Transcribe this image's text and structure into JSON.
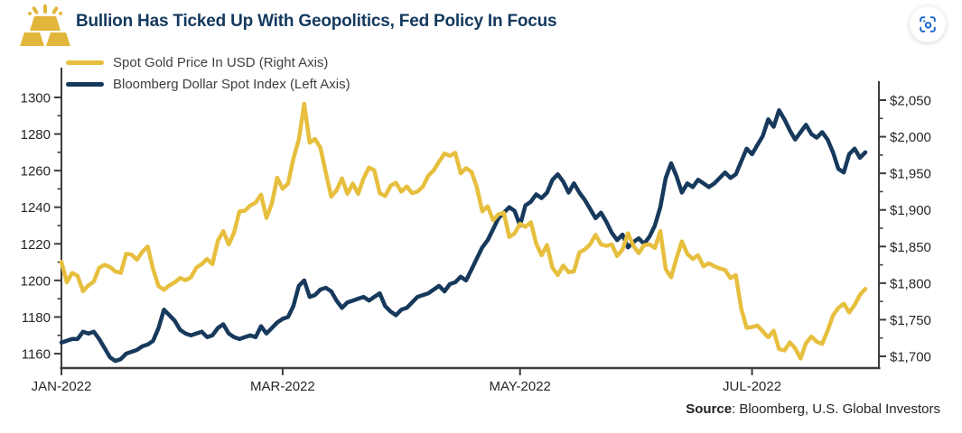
{
  "header": {
    "title": "Bullion Has Ticked Up With Geopolitics, Fed Policy In Focus",
    "title_color": "#14395E",
    "icon": "gold-bars-icon",
    "zoom_button_icon": "scan-focus-icon"
  },
  "colors": {
    "gold_line": "#E7BF3E",
    "navy_line": "#16395C",
    "axis": "#3C3C3C",
    "tick_label": "#262626",
    "scan_icon_blue": "#1666CC",
    "legend_text": "#3F4042"
  },
  "source": {
    "label_bold": "Source",
    "label_rest": ": Bloomberg, U.S. Global Investors"
  },
  "chart_data": {
    "type": "line",
    "title": "Bullion Has Ticked Up With Geopolitics, Fed Policy In Focus",
    "x_description": "Trading days, Dec 31 2021 through early Aug 2022",
    "grid": false,
    "legend_position": "top-left-inside",
    "x_ticks": [
      {
        "label": "JAN-2022",
        "index": 0
      },
      {
        "label": "MAR-2022",
        "index": 41
      },
      {
        "label": "MAY-2022",
        "index": 85
      },
      {
        "label": "JUL-2022",
        "index": 128
      }
    ],
    "left_axis": {
      "label": "Bloomberg Dollar Spot Index",
      "ticks": [
        {
          "v": 1300,
          "label": "1300"
        },
        {
          "v": 1280,
          "label": "1280"
        },
        {
          "v": 1260,
          "label": "1260"
        },
        {
          "v": 1240,
          "label": "1240"
        },
        {
          "v": 1220,
          "label": "1220"
        },
        {
          "v": 1200,
          "label": "1200"
        },
        {
          "v": 1180,
          "label": "1180"
        },
        {
          "v": 1160,
          "label": "1160"
        }
      ]
    },
    "right_axis": {
      "label": "Spot Gold Price In USD",
      "ticks": [
        {
          "v": 2050,
          "label": "$2,050"
        },
        {
          "v": 2000,
          "label": "$2,000"
        },
        {
          "v": 1950,
          "label": "$1,950"
        },
        {
          "v": 1900,
          "label": "$1,900"
        },
        {
          "v": 1850,
          "label": "$1,850"
        },
        {
          "v": 1800,
          "label": "$1,800"
        },
        {
          "v": 1750,
          "label": "$1,750"
        },
        {
          "v": 1700,
          "label": "$1,700"
        }
      ]
    },
    "series": [
      {
        "name": "Spot Gold Price In USD (Right Axis)",
        "axis": "right",
        "color": "#E7BF3E",
        "values": [
          1829,
          1801,
          1814,
          1810,
          1789,
          1797,
          1802,
          1821,
          1825,
          1822,
          1816,
          1814,
          1840,
          1839,
          1832,
          1843,
          1850,
          1819,
          1796,
          1791,
          1797,
          1801,
          1807,
          1804,
          1808,
          1821,
          1826,
          1833,
          1826,
          1858,
          1871,
          1853,
          1869,
          1898,
          1899,
          1906,
          1910,
          1921,
          1889,
          1909,
          1944,
          1929,
          1936,
          1970,
          1996,
          2045,
          1992,
          1997,
          1985,
          1951,
          1918,
          1927,
          1943,
          1922,
          1936,
          1922,
          1943,
          1958,
          1954,
          1923,
          1919,
          1933,
          1937,
          1925,
          1932,
          1923,
          1925,
          1932,
          1947,
          1954,
          1966,
          1977,
          1974,
          1978,
          1950,
          1957,
          1952,
          1931,
          1898,
          1905,
          1886,
          1894,
          1896,
          1863,
          1868,
          1881,
          1877,
          1883,
          1854,
          1838,
          1852,
          1821,
          1811,
          1824,
          1815,
          1816,
          1842,
          1846,
          1853,
          1866,
          1853,
          1851,
          1853,
          1837,
          1846,
          1868,
          1851,
          1841,
          1852,
          1853,
          1848,
          1871,
          1819,
          1808,
          1834,
          1857,
          1840,
          1833,
          1838,
          1823,
          1827,
          1823,
          1820,
          1818,
          1807,
          1811,
          1765,
          1739,
          1740,
          1742,
          1734,
          1726,
          1735,
          1710,
          1708,
          1719,
          1711,
          1697,
          1718,
          1727,
          1720,
          1717,
          1735,
          1756,
          1766,
          1772,
          1760,
          1770,
          1784,
          1792
        ]
      },
      {
        "name": "Bloomberg Dollar Spot Index (Left Axis)",
        "axis": "left",
        "color": "#16395C",
        "values": [
          1166,
          1167,
          1168,
          1168,
          1172,
          1171,
          1172,
          1168,
          1163,
          1158,
          1156,
          1157,
          1160,
          1161,
          1162,
          1164,
          1165,
          1167,
          1174,
          1184,
          1181,
          1178,
          1173,
          1171,
          1170,
          1171,
          1172,
          1169,
          1170,
          1174,
          1176,
          1171,
          1169,
          1168,
          1169,
          1170,
          1169,
          1175,
          1171,
          1174,
          1177,
          1179,
          1180,
          1186,
          1197,
          1200,
          1191,
          1192,
          1195,
          1196,
          1194,
          1189,
          1185,
          1188,
          1189,
          1190,
          1191,
          1189,
          1191,
          1193,
          1186,
          1183,
          1181,
          1184,
          1185,
          1188,
          1191,
          1192,
          1193,
          1195,
          1197,
          1194,
          1198,
          1199,
          1202,
          1200,
          1206,
          1212,
          1218,
          1222,
          1228,
          1234,
          1237,
          1240,
          1238,
          1230,
          1241,
          1243,
          1247,
          1245,
          1248,
          1255,
          1258,
          1254,
          1248,
          1253,
          1248,
          1244,
          1239,
          1234,
          1237,
          1232,
          1226,
          1222,
          1225,
          1218,
          1221,
          1223,
          1220,
          1224,
          1230,
          1240,
          1256,
          1264,
          1257,
          1248,
          1253,
          1251,
          1255,
          1253,
          1251,
          1253,
          1256,
          1259,
          1256,
          1258,
          1265,
          1272,
          1269,
          1274,
          1279,
          1288,
          1284,
          1293,
          1288,
          1282,
          1277,
          1281,
          1285,
          1280,
          1278,
          1281,
          1277,
          1270,
          1261,
          1259,
          1269,
          1272,
          1267,
          1270
        ]
      }
    ]
  }
}
